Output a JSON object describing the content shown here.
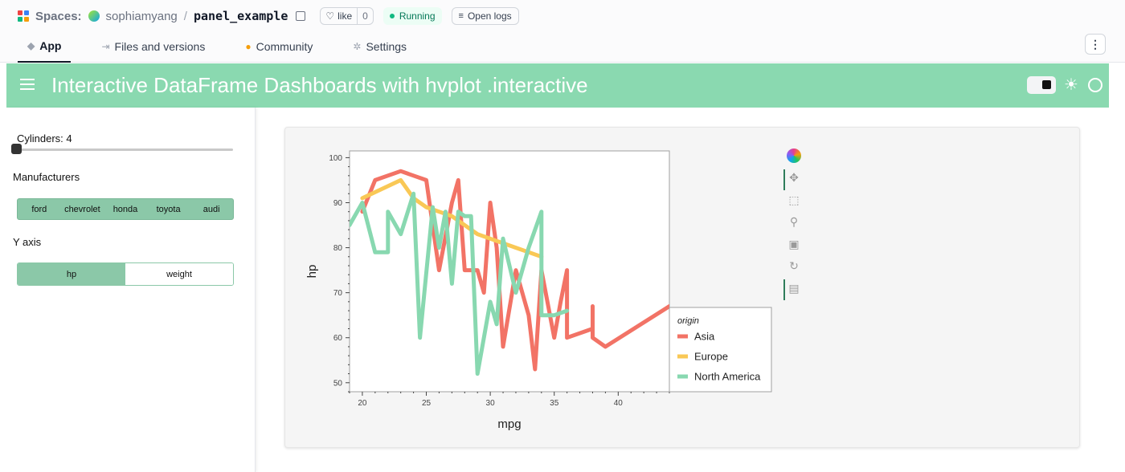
{
  "hf": {
    "spaces_label": "Spaces:",
    "owner": "sophiamyang",
    "separator": "/",
    "repo": "panel_example",
    "like_label": "like",
    "like_count": "0",
    "status": "Running",
    "logs_label": "Open logs",
    "tabs": [
      {
        "label": "App",
        "icon": "cube-icon"
      },
      {
        "label": "Files and versions",
        "icon": "files-icon"
      },
      {
        "label": "Community",
        "icon": "community-icon"
      },
      {
        "label": "Settings",
        "icon": "gear-icon"
      }
    ]
  },
  "panel": {
    "title": "Interactive DataFrame Dashboards with hvplot .interactive",
    "accent": "#8ad9b0"
  },
  "sidebar": {
    "cylinders_label": "Cylinders: 4",
    "cylinders_value": 4,
    "manufacturers_label": "Manufacturers",
    "manufacturers": [
      "ford",
      "chevrolet",
      "honda",
      "toyota",
      "audi"
    ],
    "yaxis_label": "Y axis",
    "yaxis_options": [
      "hp",
      "weight"
    ],
    "yaxis_selected": "hp"
  },
  "chart_data": {
    "type": "line",
    "title": "",
    "xlabel": "mpg",
    "ylabel": "hp",
    "xlim": [
      19,
      44
    ],
    "ylim": [
      48,
      101.5
    ],
    "xticks": [
      20,
      25,
      30,
      35,
      40
    ],
    "yticks": [
      50,
      60,
      70,
      80,
      90,
      100
    ],
    "legend_title": "origin",
    "legend_position": "right",
    "series": [
      {
        "name": "Asia",
        "color": "#f27366",
        "points": [
          [
            20,
            88
          ],
          [
            21,
            95
          ],
          [
            23,
            97
          ],
          [
            24,
            96
          ],
          [
            25,
            95
          ],
          [
            26,
            75
          ],
          [
            27,
            90
          ],
          [
            27.5,
            95
          ],
          [
            28,
            75
          ],
          [
            29,
            75
          ],
          [
            29.5,
            70
          ],
          [
            30,
            90
          ],
          [
            30.5,
            80
          ],
          [
            31,
            58
          ],
          [
            32,
            75
          ],
          [
            33,
            65
          ],
          [
            33.5,
            53
          ],
          [
            34,
            75
          ],
          [
            35,
            60
          ],
          [
            35.5,
            68
          ],
          [
            36,
            75
          ],
          [
            36,
            60
          ],
          [
            38,
            62
          ],
          [
            38,
            67
          ],
          [
            38,
            60
          ],
          [
            39,
            58
          ],
          [
            44,
            67
          ]
        ]
      },
      {
        "name": "Europe",
        "color": "#f9c856",
        "points": [
          [
            20,
            91
          ],
          [
            23,
            95
          ],
          [
            24,
            91
          ],
          [
            25,
            89
          ],
          [
            26,
            88
          ],
          [
            27,
            87
          ],
          [
            28,
            85
          ],
          [
            29,
            83
          ],
          [
            30,
            82
          ],
          [
            31,
            81
          ],
          [
            32,
            80
          ],
          [
            33,
            79
          ],
          [
            34,
            78
          ]
        ]
      },
      {
        "name": "North America",
        "color": "#88d8b0",
        "points": [
          [
            19,
            85
          ],
          [
            20,
            90
          ],
          [
            21,
            79
          ],
          [
            22,
            79
          ],
          [
            22,
            88
          ],
          [
            23,
            83
          ],
          [
            24,
            92
          ],
          [
            24.5,
            60
          ],
          [
            25.5,
            89
          ],
          [
            26,
            80
          ],
          [
            26.5,
            88
          ],
          [
            27,
            72
          ],
          [
            27.5,
            88
          ],
          [
            28,
            87
          ],
          [
            28.5,
            87
          ],
          [
            29,
            52
          ],
          [
            29.5,
            60
          ],
          [
            30,
            68
          ],
          [
            30.5,
            63
          ],
          [
            31,
            82
          ],
          [
            32,
            70
          ],
          [
            33,
            80
          ],
          [
            34,
            88
          ],
          [
            34,
            65
          ],
          [
            35,
            65
          ],
          [
            36,
            66
          ]
        ]
      }
    ]
  },
  "toolbar": {
    "tools": [
      "bokeh-logo-icon",
      "pan-icon",
      "box-zoom-icon",
      "wheel-zoom-icon",
      "save-icon",
      "reset-icon",
      "hover-icon"
    ]
  }
}
